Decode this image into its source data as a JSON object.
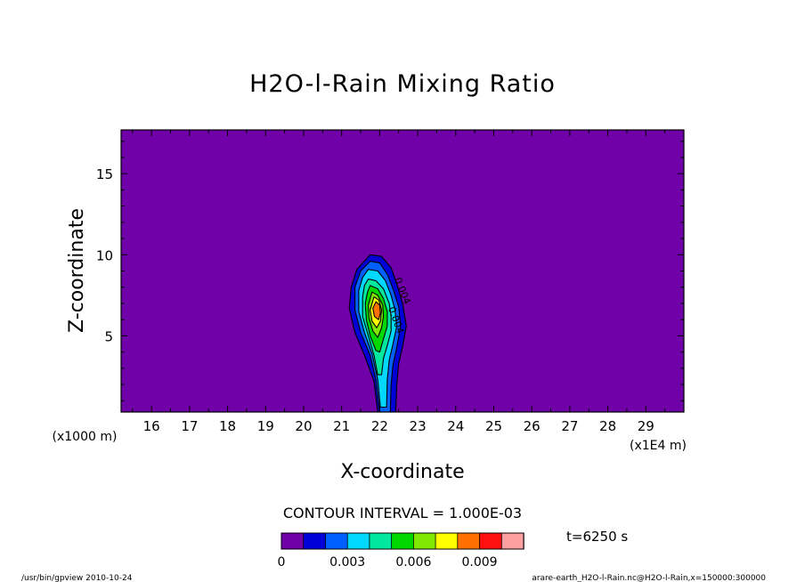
{
  "chart_data": {
    "type": "heatmap",
    "title": "H2O-l-Rain Mixing Ratio",
    "xlabel": "X-coordinate",
    "ylabel": "Z-coordinate",
    "x_scale_note": "(x1E4 m)",
    "y_scale_note": "(x1000 m)",
    "xlim": [
      15.2,
      30.0
    ],
    "ylim": [
      0.3,
      17.7
    ],
    "x_ticks": [
      16,
      17,
      18,
      19,
      20,
      21,
      22,
      23,
      24,
      25,
      26,
      27,
      28,
      29
    ],
    "y_ticks": [
      5,
      10,
      15
    ],
    "grid": false,
    "contour_interval_text": "CONTOUR INTERVAL = 1.000E-03",
    "colorbar": {
      "levels": [
        0,
        0.001,
        0.002,
        0.003,
        0.004,
        0.005,
        0.006,
        0.007,
        0.008,
        0.009,
        0.01
      ],
      "tick_labels": [
        "0",
        "0.003",
        "0.006",
        "0.009"
      ],
      "colors": [
        "#7000a8",
        "#0000d8",
        "#0060ff",
        "#00d8ff",
        "#00e8a0",
        "#00d800",
        "#80e800",
        "#ffff00",
        "#ff7000",
        "#ff1010",
        "#ffa0a0"
      ]
    },
    "contour_labels": [
      "0.004",
      "0.004"
    ],
    "contours": [
      {
        "level": 0.001,
        "points": [
          [
            21.75,
            10.0
          ],
          [
            22.05,
            9.9
          ],
          [
            22.3,
            9.2
          ],
          [
            22.45,
            8.2
          ],
          [
            22.6,
            7.0
          ],
          [
            22.7,
            5.6
          ],
          [
            22.6,
            4.3
          ],
          [
            22.5,
            3.3
          ],
          [
            22.45,
            2.0
          ],
          [
            22.42,
            0.3
          ],
          [
            21.95,
            0.3
          ],
          [
            21.85,
            2.2
          ],
          [
            21.6,
            3.8
          ],
          [
            21.35,
            5.2
          ],
          [
            21.2,
            6.7
          ],
          [
            21.25,
            8.0
          ],
          [
            21.4,
            9.1
          ]
        ]
      },
      {
        "level": 0.002,
        "points": [
          [
            21.75,
            9.6
          ],
          [
            22.0,
            9.5
          ],
          [
            22.2,
            8.8
          ],
          [
            22.35,
            7.9
          ],
          [
            22.5,
            6.8
          ],
          [
            22.55,
            5.6
          ],
          [
            22.45,
            4.3
          ],
          [
            22.35,
            3.2
          ],
          [
            22.3,
            2.0
          ],
          [
            22.28,
            0.3
          ],
          [
            22.0,
            0.3
          ],
          [
            21.9,
            2.3
          ],
          [
            21.75,
            3.8
          ],
          [
            21.5,
            5.2
          ],
          [
            21.35,
            6.6
          ],
          [
            21.35,
            8.0
          ],
          [
            21.5,
            9.0
          ]
        ]
      },
      {
        "level": 0.003,
        "points": [
          [
            21.7,
            9.1
          ],
          [
            21.95,
            9.0
          ],
          [
            22.15,
            8.4
          ],
          [
            22.3,
            7.5
          ],
          [
            22.4,
            6.6
          ],
          [
            22.45,
            5.6
          ],
          [
            22.35,
            4.5
          ],
          [
            22.25,
            3.5
          ],
          [
            22.2,
            2.3
          ],
          [
            22.18,
            0.6
          ],
          [
            22.02,
            0.6
          ],
          [
            21.95,
            2.3
          ],
          [
            21.8,
            3.9
          ],
          [
            21.6,
            5.2
          ],
          [
            21.45,
            6.5
          ],
          [
            21.45,
            7.8
          ],
          [
            21.55,
            8.6
          ]
        ]
      },
      {
        "level": 0.004,
        "points": [
          [
            21.7,
            8.5
          ],
          [
            21.9,
            8.4
          ],
          [
            22.1,
            7.9
          ],
          [
            22.25,
            7.0
          ],
          [
            22.3,
            6.2
          ],
          [
            22.3,
            5.3
          ],
          [
            22.2,
            4.4
          ],
          [
            22.1,
            3.6
          ],
          [
            22.05,
            2.6
          ],
          [
            21.95,
            2.6
          ],
          [
            21.85,
            3.8
          ],
          [
            21.7,
            5.0
          ],
          [
            21.55,
            6.2
          ],
          [
            21.55,
            7.4
          ],
          [
            21.6,
            8.1
          ]
        ]
      },
      {
        "level": 0.005,
        "points": [
          [
            21.75,
            8.1
          ],
          [
            21.95,
            7.9
          ],
          [
            22.1,
            7.3
          ],
          [
            22.2,
            6.5
          ],
          [
            22.2,
            5.6
          ],
          [
            22.1,
            4.8
          ],
          [
            22.0,
            4.0
          ],
          [
            21.9,
            4.1
          ],
          [
            21.75,
            5.0
          ],
          [
            21.65,
            6.0
          ],
          [
            21.62,
            7.0
          ],
          [
            21.68,
            7.7
          ]
        ]
      },
      {
        "level": 0.006,
        "points": [
          [
            21.8,
            7.7
          ],
          [
            21.95,
            7.5
          ],
          [
            22.08,
            6.9
          ],
          [
            22.1,
            6.2
          ],
          [
            22.05,
            5.5
          ],
          [
            21.95,
            4.9
          ],
          [
            21.82,
            5.3
          ],
          [
            21.72,
            6.1
          ],
          [
            21.7,
            6.9
          ]
        ]
      },
      {
        "level": 0.007,
        "points": [
          [
            21.85,
            7.4
          ],
          [
            21.98,
            7.2
          ],
          [
            22.05,
            6.6
          ],
          [
            22.02,
            5.9
          ],
          [
            21.92,
            5.5
          ],
          [
            21.8,
            5.9
          ],
          [
            21.75,
            6.6
          ]
        ]
      },
      {
        "level": 0.008,
        "points": [
          [
            21.9,
            7.1
          ],
          [
            22.0,
            6.9
          ],
          [
            22.02,
            6.4
          ],
          [
            21.97,
            6.0
          ],
          [
            21.86,
            6.2
          ],
          [
            21.82,
            6.7
          ]
        ]
      }
    ]
  },
  "footer": {
    "time": "t=6250 s",
    "left_note": "/usr/bin/gpview  2010-10-24",
    "right_note": "arare-earth_H2O-l-Rain.nc@H2O-l-Rain,x=150000:300000"
  }
}
